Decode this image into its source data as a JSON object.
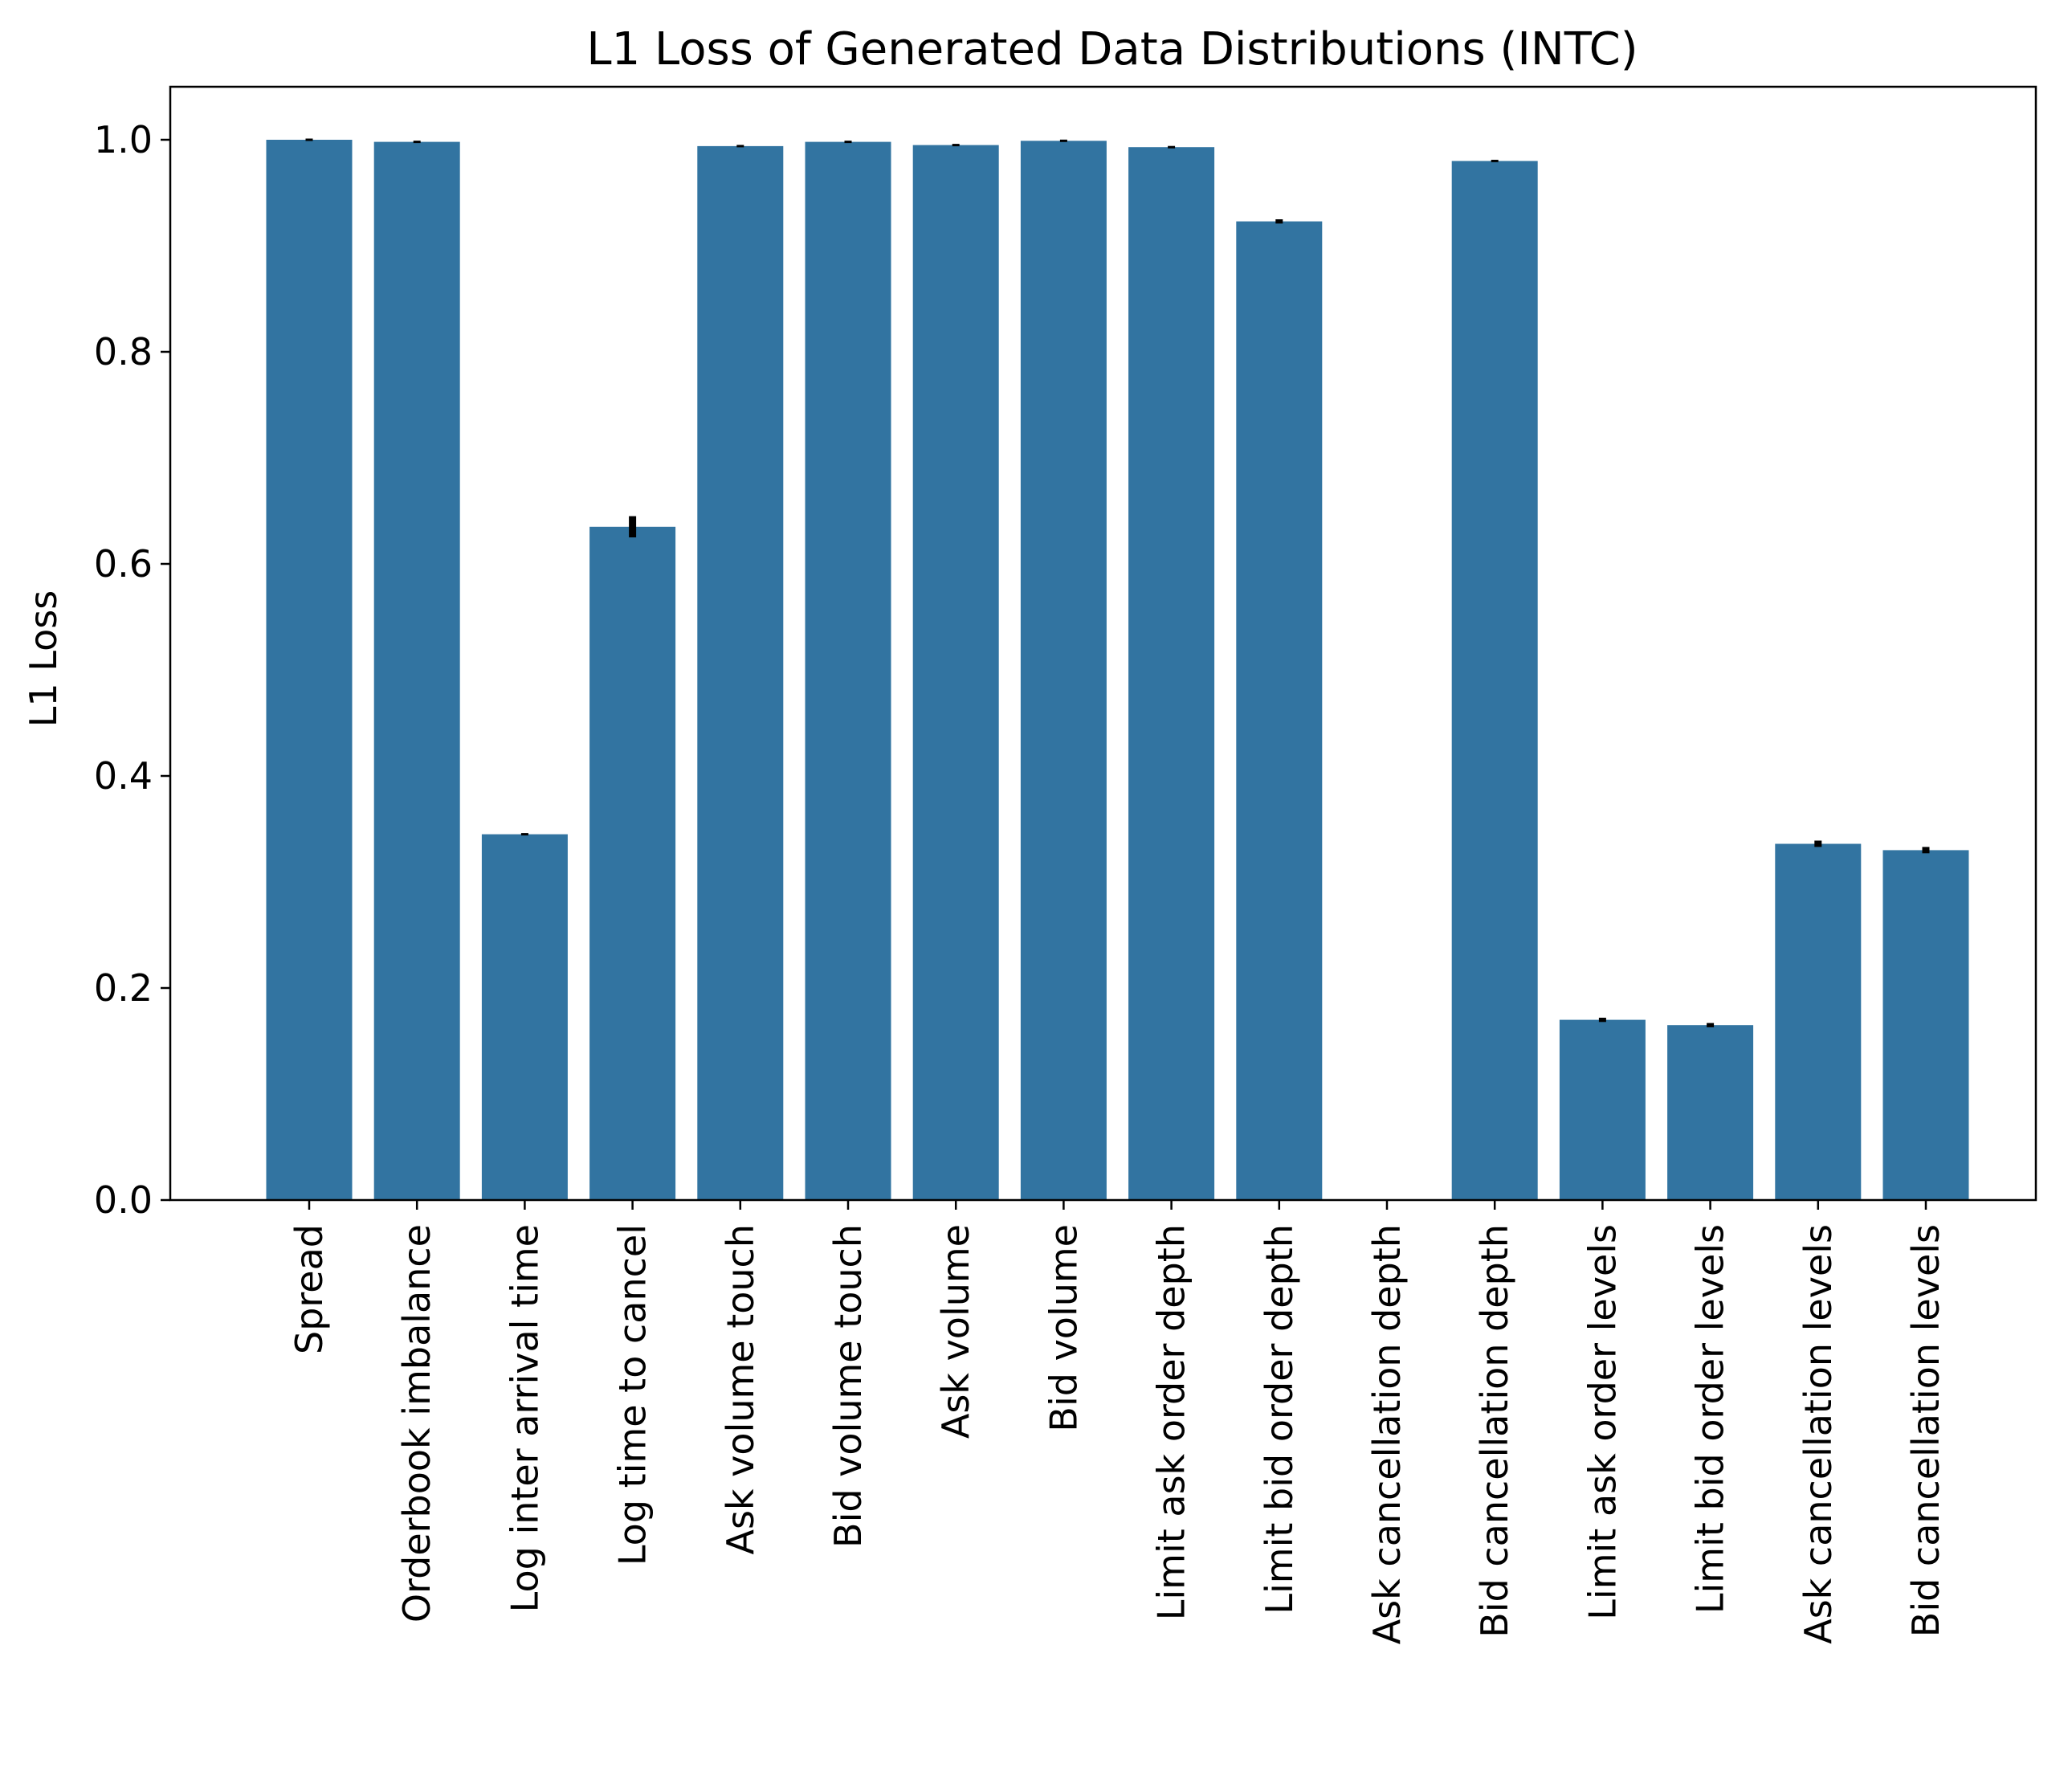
{
  "chart_data": {
    "type": "bar",
    "title": "L1 Loss of Generated Data Distributions (INTC)",
    "xlabel": "",
    "ylabel": "L1 Loss",
    "ylim": [
      0,
      1.05
    ],
    "yticks": [
      0.0,
      0.2,
      0.4,
      0.6,
      0.8,
      1.0
    ],
    "ytick_labels": [
      "0.0",
      "0.2",
      "0.4",
      "0.6",
      "0.8",
      "1.0"
    ],
    "grid": false,
    "bar_color": "#3274a1",
    "error_color": "#000000",
    "categories": [
      "Spread",
      "Orderbook imbalance",
      "Log inter arrival time",
      "Log time to cancel",
      "Ask volume touch",
      "Bid volume touch",
      "Ask volume",
      "Bid volume",
      "Limit ask order depth",
      "Limit bid order depth",
      "Ask cancellation depth",
      "Bid cancellation depth",
      "Limit ask order levels",
      "Limit bid order levels",
      "Ask cancellation levels",
      "Bid cancellation levels"
    ],
    "values": [
      1.0,
      0.998,
      0.345,
      0.635,
      0.994,
      0.998,
      0.995,
      0.999,
      0.993,
      0.923,
      0.0,
      0.98,
      0.17,
      0.165,
      0.336,
      0.33
    ],
    "errors": [
      0.0,
      0.001,
      0.001,
      0.01,
      0.001,
      0.0,
      0.0,
      0.0,
      0.0,
      0.002,
      0.0,
      0.001,
      0.002,
      0.002,
      0.003,
      0.003
    ]
  }
}
